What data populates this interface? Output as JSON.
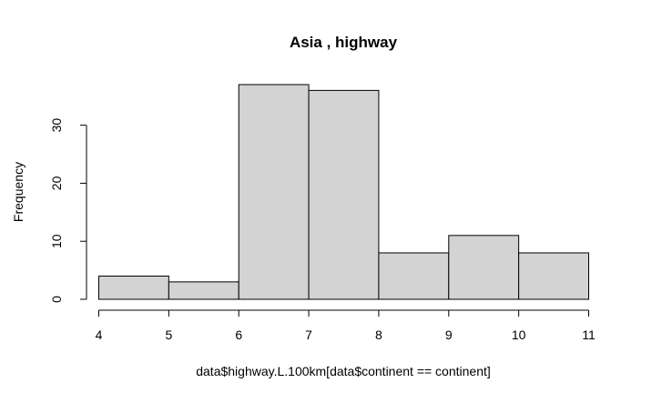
{
  "chart_data": {
    "type": "bar",
    "title": "Asia , highway",
    "xlabel": "data$highway.L.100km[data$continent == continent]",
    "ylabel": "Frequency",
    "bins": [
      {
        "from": 4,
        "to": 5,
        "count": 4
      },
      {
        "from": 5,
        "to": 6,
        "count": 3
      },
      {
        "from": 6,
        "to": 7,
        "count": 37
      },
      {
        "from": 7,
        "to": 8,
        "count": 36
      },
      {
        "from": 8,
        "to": 9,
        "count": 8
      },
      {
        "from": 9,
        "to": 10,
        "count": 11
      },
      {
        "from": 10,
        "to": 11,
        "count": 8
      }
    ],
    "xlim": [
      4,
      11
    ],
    "ylim": [
      0,
      37
    ],
    "x_ticks": [
      4,
      5,
      6,
      7,
      8,
      9,
      10,
      11
    ],
    "y_ticks": [
      0,
      10,
      20,
      30
    ],
    "bar_fill": "#d3d3d3",
    "bar_stroke": "#000000",
    "grid": false,
    "legend": "none"
  }
}
